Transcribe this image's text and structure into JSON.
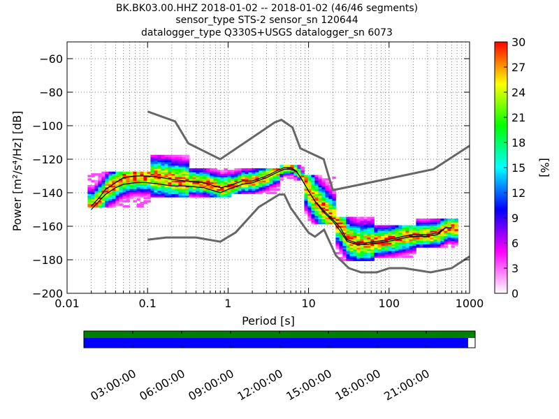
{
  "title": {
    "line1": "BK.BK03.00.HHZ   2018-01-02 -- 2018-01-02  (46/46 segments)",
    "line2": "sensor_type STS-2 sensor_sn 120644",
    "line3": "datalogger_type Q330S+USGS datalogger_sn 6073"
  },
  "chart_data": {
    "type": "heatmap",
    "title": "BK.BK03.00.HHZ   2018-01-02 -- 2018-01-02  (46/46 segments)",
    "xlabel": "Period [s]",
    "ylabel": "Power [m²/s⁴/Hz] [dB]",
    "xscale": "log",
    "xlim": [
      0.01,
      1000
    ],
    "ylim": [
      -200,
      -50
    ],
    "x_ticks": [
      0.01,
      0.1,
      1,
      10,
      100,
      1000
    ],
    "x_tick_labels": [
      "0.01",
      "0.1",
      "1",
      "10",
      "100",
      "1000"
    ],
    "y_ticks": [
      -200,
      -180,
      -160,
      -140,
      -120,
      -100,
      -80,
      -60
    ],
    "y_tick_labels": [
      "−200",
      "−180",
      "−160",
      "−140",
      "−120",
      "−100",
      "−80",
      "−60"
    ],
    "grid": "dotted vertical and horizontal",
    "colorbar": {
      "label": "[%]",
      "range": [
        0,
        30
      ],
      "ticks": [
        0,
        3,
        6,
        9,
        12,
        15,
        18,
        21,
        24,
        27,
        30
      ],
      "colormap": [
        "#ffffff",
        "#ff00ff",
        "#0000ff",
        "#00ffff",
        "#00ff00",
        "#ffff00",
        "#ff0000"
      ]
    },
    "noise_models": {
      "high": {
        "period": [
          0.1,
          0.22,
          0.32,
          0.8,
          3.8,
          4.6,
          6.3,
          7.9,
          15.4,
          20,
          354.8,
          1000
        ],
        "db": [
          -91.5,
          -97.4,
          -110.5,
          -120,
          -98,
          -96.5,
          -101,
          -113.5,
          -120,
          -138.5,
          -126,
          -112
        ]
      },
      "low": {
        "period": [
          0.1,
          0.17,
          0.4,
          0.8,
          1.24,
          2.4,
          4.3,
          5,
          6,
          10,
          12,
          15.6,
          21.9,
          31.6,
          45,
          70,
          101,
          154,
          328,
          600,
          1000
        ],
        "db": [
          -168,
          -166.7,
          -166.7,
          -169.2,
          -163.7,
          -148.6,
          -141.1,
          -141.1,
          -149,
          -163.8,
          -166.2,
          -162.1,
          -177.5,
          -185,
          -187.5,
          -187.5,
          -185,
          -185,
          -187.5,
          -185,
          -178
        ]
      }
    },
    "mean_curve": {
      "period": [
        0.02,
        0.025,
        0.03,
        0.04,
        0.05,
        0.07,
        0.1,
        0.15,
        0.2,
        0.3,
        0.5,
        0.8,
        1,
        1.5,
        2,
        3,
        4,
        5,
        6,
        7,
        8,
        10,
        12,
        15,
        20,
        25,
        30,
        40,
        50,
        70,
        100,
        150,
        200,
        300,
        400,
        500,
        600
      ],
      "db": [
        -150,
        -145,
        -141,
        -137,
        -135,
        -134,
        -134,
        -135,
        -136,
        -136,
        -137,
        -140,
        -138,
        -135,
        -134,
        -131,
        -128,
        -126,
        -126,
        -127,
        -131,
        -139,
        -145,
        -151,
        -157,
        -163,
        -169,
        -171,
        -171,
        -170,
        -169,
        -167,
        -166,
        -166,
        -165,
        -161,
        -161
      ]
    },
    "mode_curve": {
      "period": [
        0.02,
        0.025,
        0.03,
        0.04,
        0.05,
        0.07,
        0.1,
        0.15,
        0.2,
        0.3,
        0.5,
        0.8,
        1,
        1.5,
        2,
        3,
        4,
        5,
        6,
        7,
        8,
        10,
        12,
        15,
        20,
        25,
        30,
        40,
        50,
        70,
        100,
        150,
        200,
        300,
        400,
        500,
        600
      ],
      "db": [
        -148,
        -143,
        -138,
        -134,
        -131,
        -130,
        -130,
        -131,
        -132,
        -133,
        -134,
        -137,
        -136,
        -133,
        -133,
        -130,
        -127,
        -125,
        -125,
        -127,
        -131,
        -139,
        -145,
        -150,
        -156,
        -161,
        -168,
        -170,
        -170,
        -169,
        -168,
        -166,
        -165,
        -165,
        -164,
        -161,
        -161
      ]
    },
    "density_bands": [
      {
        "pmin": 0.018,
        "pmax": 0.1,
        "lo": -148,
        "hi": -128
      },
      {
        "pmin": 0.1,
        "pmax": 0.3,
        "lo": -142,
        "hi": -118
      },
      {
        "pmin": 0.3,
        "pmax": 1.0,
        "lo": -142,
        "hi": -126
      },
      {
        "pmin": 1.0,
        "pmax": 4.0,
        "lo": -140,
        "hi": -126
      },
      {
        "pmin": 4.0,
        "pmax": 8.0,
        "lo": -132,
        "hi": -124
      },
      {
        "pmin": 8.0,
        "pmax": 20,
        "lo": -158,
        "hi": -130
      },
      {
        "pmin": 20,
        "pmax": 60,
        "lo": -180,
        "hi": -155
      },
      {
        "pmin": 60,
        "pmax": 200,
        "lo": -178,
        "hi": -160
      },
      {
        "pmin": 200,
        "pmax": 700,
        "lo": -172,
        "hi": -156
      }
    ]
  },
  "timeline": {
    "labels": [
      "03:00:00",
      "06:00:00",
      "09:00:00",
      "12:00:00",
      "15:00:00",
      "18:00:00",
      "21:00:00"
    ],
    "data_coverage_fraction": 0.982,
    "colors": {
      "top": "#008000",
      "bottom": "#0000ff"
    }
  }
}
